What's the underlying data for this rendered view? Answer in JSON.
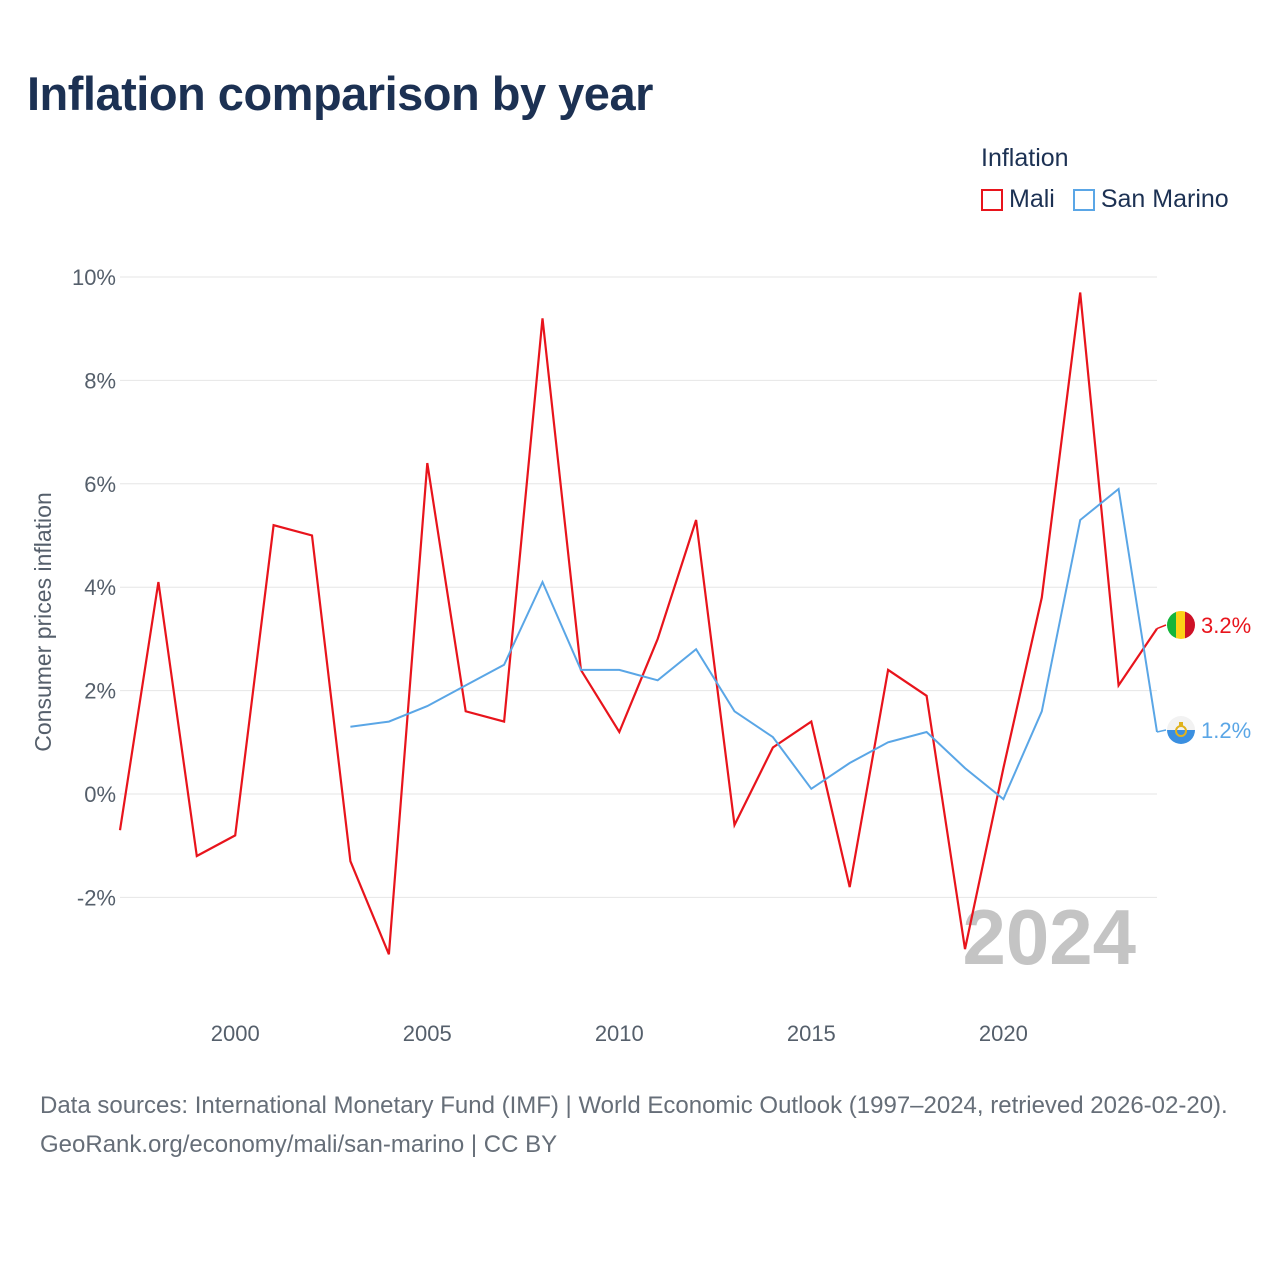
{
  "title": "Inflation comparison by year",
  "legend": {
    "title": "Inflation",
    "items": [
      {
        "label": "Mali",
        "color": "#e8141c"
      },
      {
        "label": "San Marino",
        "color": "#5aa6e6"
      }
    ]
  },
  "watermark_year": "2024",
  "source": {
    "line1": "Data sources: International Monetary Fund (IMF) | World Economic Outlook (1997–2024, retrieved 2026-02-20).",
    "line2": "GeoRank.org/economy/mali/san-marino | CC BY"
  },
  "chart_data": {
    "type": "line",
    "title": "Inflation comparison by year",
    "xlabel": "",
    "ylabel": "Consumer prices inflation",
    "xlim": [
      1997,
      2024
    ],
    "ylim": [
      -3.5,
      10.2
    ],
    "yticks": [
      -2,
      0,
      2,
      4,
      6,
      8,
      10
    ],
    "ytick_labels": [
      "-2%",
      "0%",
      "2%",
      "4%",
      "6%",
      "8%",
      "10%"
    ],
    "xticks": [
      2000,
      2005,
      2010,
      2015,
      2020
    ],
    "xtick_labels": [
      "2000",
      "2005",
      "2010",
      "2015",
      "2020"
    ],
    "grid": true,
    "legend_position": "top-right",
    "series": [
      {
        "name": "Mali",
        "color": "#e8141c",
        "end_label": "3.2%",
        "x": [
          1997,
          1998,
          1999,
          2000,
          2001,
          2002,
          2003,
          2004,
          2005,
          2006,
          2007,
          2008,
          2009,
          2010,
          2011,
          2012,
          2013,
          2014,
          2015,
          2016,
          2017,
          2018,
          2019,
          2020,
          2021,
          2022,
          2023,
          2024
        ],
        "values": [
          -0.7,
          4.1,
          -1.2,
          -0.8,
          5.2,
          5.0,
          -1.3,
          -3.1,
          6.4,
          1.6,
          1.4,
          9.2,
          2.4,
          1.2,
          3.0,
          5.3,
          -0.6,
          0.9,
          1.4,
          -1.8,
          2.4,
          1.9,
          -3.0,
          0.5,
          3.8,
          9.7,
          2.1,
          3.2
        ]
      },
      {
        "name": "San Marino",
        "color": "#5aa6e6",
        "end_label": "1.2%",
        "x": [
          2003,
          2004,
          2005,
          2006,
          2007,
          2008,
          2009,
          2010,
          2011,
          2012,
          2013,
          2014,
          2015,
          2016,
          2017,
          2018,
          2019,
          2020,
          2021,
          2022,
          2023,
          2024
        ],
        "values": [
          1.3,
          1.4,
          1.7,
          2.1,
          2.5,
          4.1,
          2.4,
          2.4,
          2.2,
          2.8,
          1.6,
          1.1,
          0.1,
          0.6,
          1.0,
          1.2,
          0.5,
          -0.1,
          1.6,
          5.3,
          5.9,
          1.2
        ]
      }
    ]
  }
}
